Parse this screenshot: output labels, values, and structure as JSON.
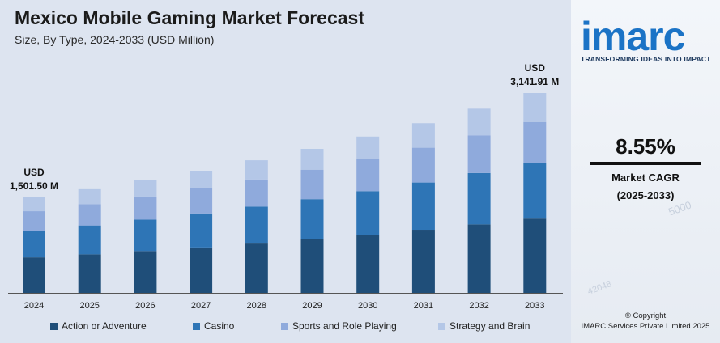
{
  "title": "Mexico Mobile Gaming Market Forecast",
  "subtitle": "Size, By Type, 2024-2033 (USD Million)",
  "side": {
    "logo": "imarc",
    "tagline": "TRANSFORMING IDEAS INTO IMPACT",
    "cagr_value": "8.55%",
    "cagr_label": "Market CAGR",
    "cagr_period": "(2025-2033)",
    "copyright_line1": "© Copyright",
    "copyright_line2": "IMARC Services Private Limited 2025"
  },
  "chart_data": {
    "type": "bar",
    "stacked": true,
    "title": "Mexico Mobile Gaming Market Forecast",
    "subtitle": "Size, By Type, 2024-2033 (USD Million)",
    "categories": [
      "2024",
      "2025",
      "2026",
      "2027",
      "2028",
      "2029",
      "2030",
      "2031",
      "2032",
      "2033"
    ],
    "totals": [
      1501.5,
      1630,
      1770,
      1921,
      2085,
      2264,
      2458,
      2668,
      2896,
      3141.91
    ],
    "series": [
      {
        "name": "Action or Adventure",
        "color": "#1f4e79",
        "values": [
          558,
          606,
          658,
          714,
          775,
          842,
          914,
          992,
          1077,
          1168
        ]
      },
      {
        "name": "Casino",
        "color": "#2e75b6",
        "values": [
          418,
          454,
          493,
          535,
          581,
          631,
          685,
          743,
          807,
          875
        ]
      },
      {
        "name": "Sports and Role Playing",
        "color": "#8faadc",
        "values": [
          308,
          334,
          363,
          394,
          427,
          464,
          504,
          547,
          593,
          644
        ]
      },
      {
        "name": "Strategy and Brain",
        "color": "#b4c7e7",
        "values": [
          217.5,
          236,
          256,
          278,
          302,
          327,
          355,
          386,
          419,
          454.91
        ]
      }
    ],
    "annotations": [
      {
        "category": "2024",
        "line1": "USD",
        "line2": "1,501.50 M"
      },
      {
        "category": "2033",
        "line1": "USD",
        "line2": "3,141.91 M"
      }
    ],
    "ylim": [
      0,
      3141.91
    ],
    "grid": false,
    "legend_position": "bottom"
  }
}
